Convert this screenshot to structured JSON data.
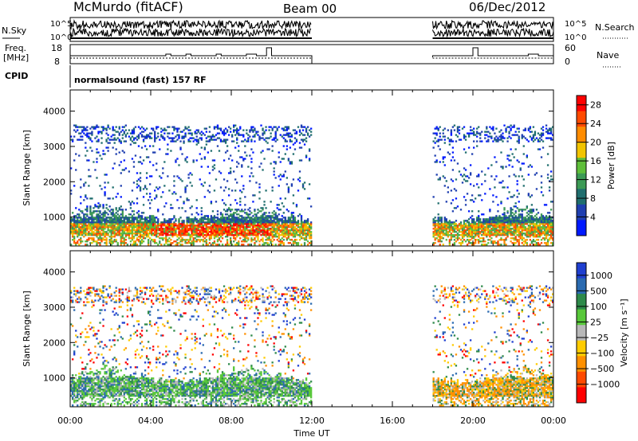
{
  "header": {
    "station": "McMurdo (fitACF)",
    "beam": "Beam 00",
    "date": "06/Dec/2012"
  },
  "labels": {
    "nsky": "N.Sky",
    "nsearch": "N.Search",
    "freq_line1": "Freq.",
    "freq_line2": "[MHz]",
    "nave": "Nave",
    "cpid": "CPID",
    "cpid_value": "normalsound (fast) 157 RF",
    "noise_ticks_left": [
      "10^5",
      "10^0"
    ],
    "noise_ticks_right": [
      "10^5",
      "10^0"
    ],
    "freq_ticks": [
      "18",
      "8"
    ],
    "nave_ticks": [
      "60",
      "0"
    ]
  },
  "colors": {
    "power_scale": [
      "#0019ff",
      "#1f3fb0",
      "#1f6e6e",
      "#3c9a55",
      "#5fbf3a",
      "#f2c400",
      "#ff8c00",
      "#ff4a00",
      "#ff0000"
    ],
    "velocity_scale": [
      "#1f3fd0",
      "#2a6ab0",
      "#2e8a4a",
      "#58c83a",
      "#b8b8b8",
      "#ffcc00",
      "#ff9000",
      "#ff4a00",
      "#ff0000"
    ]
  },
  "chart_data": [
    {
      "type": "heatmap",
      "name": "power",
      "xlabel": "Time UT",
      "ylabel": "Slant Range [km]",
      "ylim": [
        180,
        4600
      ],
      "xlim": [
        "00:00",
        "24:00"
      ],
      "x_ticks": [
        "00:00",
        "04:00",
        "08:00",
        "12:00",
        "16:00",
        "20:00",
        "00:00"
      ],
      "y_ticks": [
        1000,
        2000,
        3000,
        4000
      ],
      "data_gaps": [
        [
          "12:00",
          "18:00"
        ]
      ],
      "colorbar": {
        "label": "Power [dB]",
        "ticks": [
          4,
          8,
          12,
          16,
          20,
          24,
          28
        ],
        "range": [
          0,
          30
        ]
      }
    },
    {
      "type": "heatmap",
      "name": "velocity",
      "xlabel": "Time UT",
      "ylabel": "Slant Range [km]",
      "ylim": [
        180,
        4600
      ],
      "xlim": [
        "00:00",
        "24:00"
      ],
      "x_ticks": [
        "00:00",
        "04:00",
        "08:00",
        "12:00",
        "16:00",
        "20:00",
        "00:00"
      ],
      "y_ticks": [
        1000,
        2000,
        3000,
        4000
      ],
      "data_gaps": [
        [
          "12:00",
          "18:00"
        ]
      ],
      "colorbar": {
        "label": "Velocity [m s⁻¹]",
        "ticks": [
          "1000",
          "500",
          "100",
          "25",
          "−25",
          "−100",
          "−500",
          "−1000"
        ]
      }
    }
  ]
}
